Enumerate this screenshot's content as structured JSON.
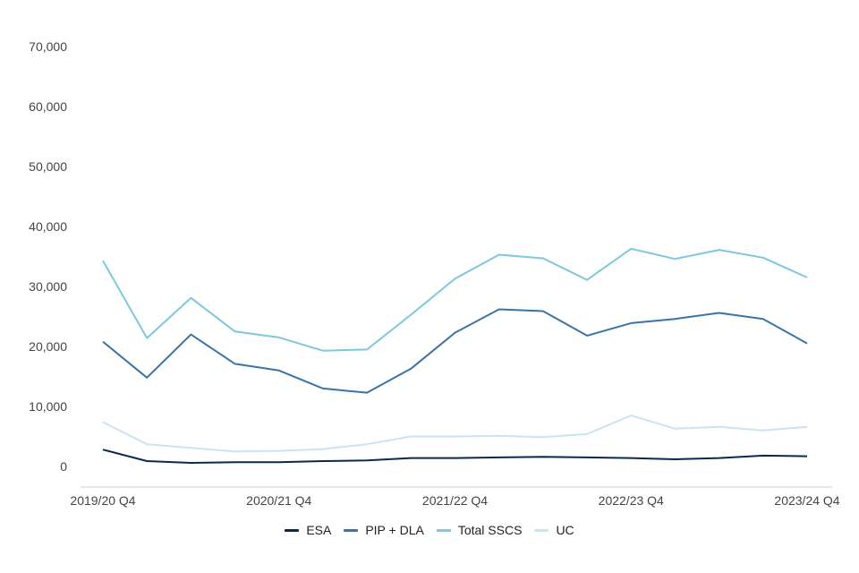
{
  "chart_data": {
    "type": "line",
    "title": "",
    "xlabel": "",
    "ylabel": "",
    "x": [
      "2019/20 Q4",
      "2020/21 Q1",
      "2020/21 Q2",
      "2020/21 Q3",
      "2020/21 Q4",
      "2021/22 Q1",
      "2021/22 Q2",
      "2021/22 Q3",
      "2021/22 Q4",
      "2022/23 Q1",
      "2022/23 Q2",
      "2022/23 Q3",
      "2022/23 Q4",
      "2023/24 Q1",
      "2023/24 Q2",
      "2023/24 Q3",
      "2023/24 Q4"
    ],
    "x_tick_labels": [
      "2019/20 Q4",
      "2020/21 Q4",
      "2021/22 Q4",
      "2022/23 Q4",
      "2023/24 Q4"
    ],
    "ylim": [
      0,
      70000
    ],
    "y_ticks": [
      0,
      10000,
      20000,
      30000,
      40000,
      50000,
      60000,
      70000
    ],
    "y_tick_labels": [
      "0",
      "10,000",
      "20,000",
      "30,000",
      "40,000",
      "50,000",
      "60,000",
      "70,000"
    ],
    "grid": false,
    "legend_position": "bottom",
    "series": [
      {
        "name": "ESA",
        "color": "#0b2a4a",
        "values": [
          2800,
          900,
          600,
          700,
          700,
          900,
          1000,
          1400,
          1400,
          1500,
          1600,
          1500,
          1400,
          1200,
          1400,
          1800,
          1700
        ]
      },
      {
        "name": "PIP + DLA",
        "color": "#3a74a7",
        "values": [
          20800,
          14800,
          22000,
          17100,
          16000,
          13000,
          12300,
          16300,
          22300,
          26200,
          25900,
          21800,
          23900,
          24600,
          25600,
          24600,
          20500
        ]
      },
      {
        "name": "Total SSCS",
        "color": "#7cc8df",
        "values": [
          34300,
          21400,
          28100,
          22500,
          21500,
          19300,
          19500,
          25300,
          31300,
          35300,
          34700,
          31100,
          36300,
          34600,
          36100,
          34800,
          31500
        ]
      },
      {
        "name": "UC",
        "color": "#c9e6f0",
        "values": [
          7400,
          3700,
          3100,
          2500,
          2600,
          2900,
          3700,
          5000,
          5000,
          5100,
          4900,
          5400,
          8500,
          6300,
          6600,
          6000,
          6600
        ]
      }
    ]
  }
}
